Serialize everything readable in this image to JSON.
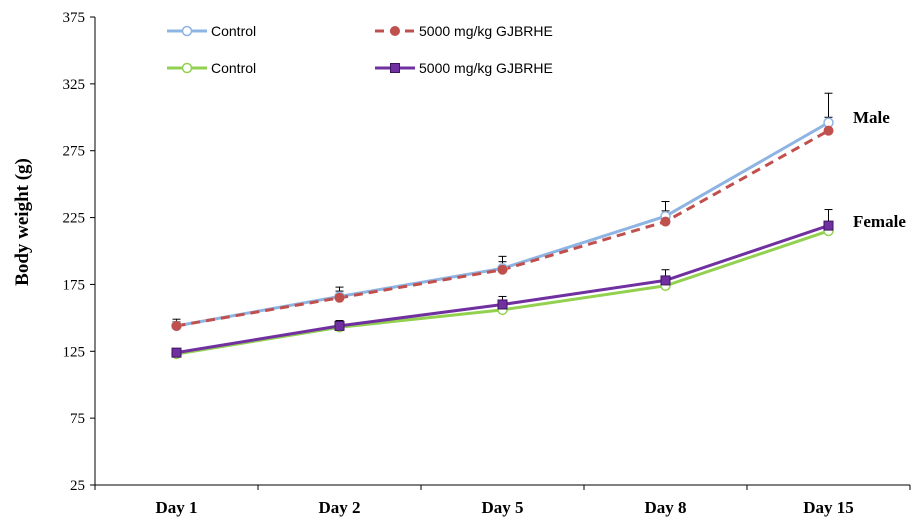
{
  "chart_data": {
    "type": "line",
    "title": "",
    "xlabel": "",
    "ylabel": "Body weight (g)",
    "ylim": [
      25,
      375
    ],
    "yticks": [
      "25",
      "75",
      "125",
      "175",
      "225",
      "275",
      "325",
      "375"
    ],
    "categories": [
      "Day 1",
      "Day 2",
      "Day 5",
      "Day 8",
      "Day 15"
    ],
    "series": [
      {
        "name": "Control",
        "group": "Male",
        "color": "#8eb4e3",
        "marker": "open-circle",
        "dash": "solid",
        "values": [
          144,
          166,
          187,
          226,
          296
        ],
        "error": [
          5,
          7,
          9,
          11,
          22
        ]
      },
      {
        "name": "5000 mg/kg GJBRHE",
        "group": "Male",
        "color": "#c0504d",
        "marker": "filled-circle",
        "dash": "dashed",
        "values": [
          144,
          165,
          186,
          222,
          290
        ],
        "error": [
          3,
          5,
          6,
          8,
          10
        ]
      },
      {
        "name": "Control",
        "group": "Female",
        "color": "#92d050",
        "marker": "open-circle",
        "dash": "solid",
        "values": [
          123,
          143,
          156,
          174,
          215
        ],
        "error": [
          3,
          3,
          3,
          4,
          5
        ]
      },
      {
        "name": "5000 mg/kg GJBRHE",
        "group": "Female",
        "color": "#7030a0",
        "marker": "square",
        "dash": "solid",
        "values": [
          124,
          144,
          160,
          178,
          219
        ],
        "error": [
          3,
          4,
          6,
          8,
          12
        ]
      }
    ],
    "annotations": [
      {
        "text": "Male",
        "near": "Day 15 upper lines"
      },
      {
        "text": "Female",
        "near": "Day 15 lower lines"
      }
    ],
    "legend_position": "top",
    "grid": false
  }
}
